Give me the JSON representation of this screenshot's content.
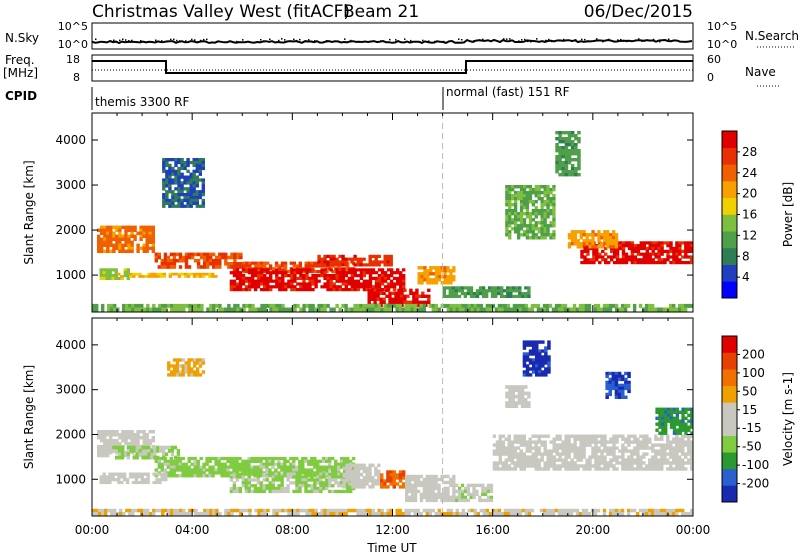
{
  "header": {
    "title": "Christmas Valley West (fitACF)",
    "beam": "Beam 21",
    "date": "06/Dec/2015"
  },
  "panels": {
    "nsky_label": "N.Sky",
    "nsky_ticks": [
      "10^5",
      "10^0"
    ],
    "nsearch_label": "N.Search",
    "nsearch_ticks": [
      "10^5",
      "10^0"
    ],
    "freq_label_1": "Freq.",
    "freq_label_2": "[MHz]",
    "freq_ticks": [
      "18",
      "8"
    ],
    "nave_label": "Nave",
    "nave_ticks": [
      "60",
      "0"
    ],
    "cpid_label": "CPID",
    "cpid_segments": [
      {
        "label": "themis 3300 RF",
        "start_hour": 0
      },
      {
        "label": "normal (fast) 151 RF",
        "start_hour": 14
      }
    ]
  },
  "colors": {
    "power_scale": [
      "#0000ff",
      "#1f3fbf",
      "#2e7d55",
      "#4f9f4a",
      "#7fbf3f",
      "#f0d000",
      "#f7a000",
      "#f06000",
      "#e83000",
      "#e00000"
    ],
    "velocity_scale": [
      "#1a2ab0",
      "#2a5fd0",
      "#2a9a30",
      "#80cc40",
      "#c8c8c0",
      "#c8c8c0",
      "#f0a000",
      "#f07000",
      "#e84000",
      "#e00000"
    ]
  },
  "chart_data": [
    {
      "type": "heatmap",
      "name": "power",
      "xlabel": "Time UT",
      "ylabel": "Slant Range [km]",
      "xlim": [
        0,
        24
      ],
      "ylim": [
        180,
        4600
      ],
      "x_ticks": [
        "00:00",
        "04:00",
        "08:00",
        "12:00",
        "16:00",
        "20:00",
        "00:00"
      ],
      "y_ticks": [
        1000,
        2000,
        3000,
        4000
      ],
      "colorbar_label": "Power [dB]",
      "colorbar_ticks": [
        "28",
        "24",
        "20",
        "16",
        "12",
        "8",
        "4"
      ],
      "colorbar_range": [
        0,
        30
      ],
      "regions": [
        {
          "t0": 0.2,
          "t1": 2.5,
          "r0": 1500,
          "r1": 2100,
          "value": 22
        },
        {
          "t0": 2.5,
          "t1": 6.0,
          "r0": 1150,
          "r1": 1500,
          "value": 24
        },
        {
          "t0": 6.0,
          "t1": 10.5,
          "r0": 1050,
          "r1": 1300,
          "value": 24
        },
        {
          "t0": 0.3,
          "t1": 1.5,
          "r0": 900,
          "r1": 1150,
          "value": 14
        },
        {
          "t0": 1.0,
          "t1": 5.0,
          "r0": 950,
          "r1": 1050,
          "value": 18
        },
        {
          "t0": 5.5,
          "t1": 12.5,
          "r0": 650,
          "r1": 1150,
          "value": 28
        },
        {
          "t0": 11.0,
          "t1": 13.5,
          "r0": 300,
          "r1": 700,
          "value": 28
        },
        {
          "t0": 9.0,
          "t1": 12.0,
          "r0": 1200,
          "r1": 1450,
          "value": 26
        },
        {
          "t0": 13.0,
          "t1": 14.5,
          "r0": 800,
          "r1": 1200,
          "value": 20
        },
        {
          "t0": 14.0,
          "t1": 17.5,
          "r0": 500,
          "r1": 750,
          "value": 10
        },
        {
          "t0": 16.5,
          "t1": 18.5,
          "r0": 1800,
          "r1": 3000,
          "value": 12
        },
        {
          "t0": 19.5,
          "t1": 24.0,
          "r0": 1250,
          "r1": 1750,
          "value": 28
        },
        {
          "t0": 19.0,
          "t1": 21.0,
          "r0": 1600,
          "r1": 2000,
          "value": 20
        },
        {
          "t0": 0.0,
          "t1": 24.0,
          "r0": 200,
          "r1": 360,
          "value": 12
        },
        {
          "t0": 2.8,
          "t1": 4.5,
          "r0": 2500,
          "r1": 3600,
          "value": 6
        },
        {
          "t0": 18.5,
          "t1": 19.5,
          "r0": 3200,
          "r1": 4200,
          "value": 10
        }
      ]
    },
    {
      "type": "heatmap",
      "name": "velocity",
      "xlabel": "Time UT",
      "ylabel": "Slant Range [km]",
      "xlim": [
        0,
        24
      ],
      "ylim": [
        180,
        4600
      ],
      "x_ticks": [
        "00:00",
        "04:00",
        "08:00",
        "12:00",
        "16:00",
        "20:00",
        "00:00"
      ],
      "y_ticks": [
        1000,
        2000,
        3000,
        4000
      ],
      "colorbar_label": "Velocity [m s-1]",
      "colorbar_ticks": [
        "200",
        "100",
        "50",
        "15",
        "-15",
        "-50",
        "-100",
        "-200"
      ],
      "colorbar_range": [
        -250,
        250
      ],
      "regions": [
        {
          "t0": 0.2,
          "t1": 2.5,
          "r0": 1500,
          "r1": 2100,
          "value": -20
        },
        {
          "t0": 0.8,
          "t1": 3.5,
          "r0": 1450,
          "r1": 1750,
          "value": -60
        },
        {
          "t0": 2.5,
          "t1": 10.5,
          "r0": 1050,
          "r1": 1500,
          "value": -70
        },
        {
          "t0": 0.3,
          "t1": 3.0,
          "r0": 900,
          "r1": 1150,
          "value": 0
        },
        {
          "t0": 5.5,
          "t1": 10.5,
          "r0": 700,
          "r1": 1150,
          "value": -55
        },
        {
          "t0": 10.0,
          "t1": 11.5,
          "r0": 800,
          "r1": 1350,
          "value": 0
        },
        {
          "t0": 11.5,
          "t1": 12.5,
          "r0": 800,
          "r1": 1200,
          "value": 140
        },
        {
          "t0": 12.5,
          "t1": 14.5,
          "r0": 500,
          "r1": 1100,
          "value": 0
        },
        {
          "t0": 14.5,
          "t1": 16.0,
          "r0": 500,
          "r1": 900,
          "value": -40
        },
        {
          "t0": 16.0,
          "t1": 24.0,
          "r0": 1200,
          "r1": 2000,
          "value": 0
        },
        {
          "t0": 16.5,
          "t1": 17.5,
          "r0": 2600,
          "r1": 3100,
          "value": 0
        },
        {
          "t0": 17.2,
          "t1": 18.3,
          "r0": 3300,
          "r1": 4100,
          "value": -220
        },
        {
          "t0": 20.5,
          "t1": 21.5,
          "r0": 2800,
          "r1": 3400,
          "value": -200
        },
        {
          "t0": 22.5,
          "t1": 24.0,
          "r0": 2000,
          "r1": 2600,
          "value": -130
        },
        {
          "t0": 0.0,
          "t1": 24.0,
          "r0": 200,
          "r1": 340,
          "value": 40
        },
        {
          "t0": 3.0,
          "t1": 4.5,
          "r0": 3300,
          "r1": 3700,
          "value": 70
        }
      ]
    }
  ]
}
